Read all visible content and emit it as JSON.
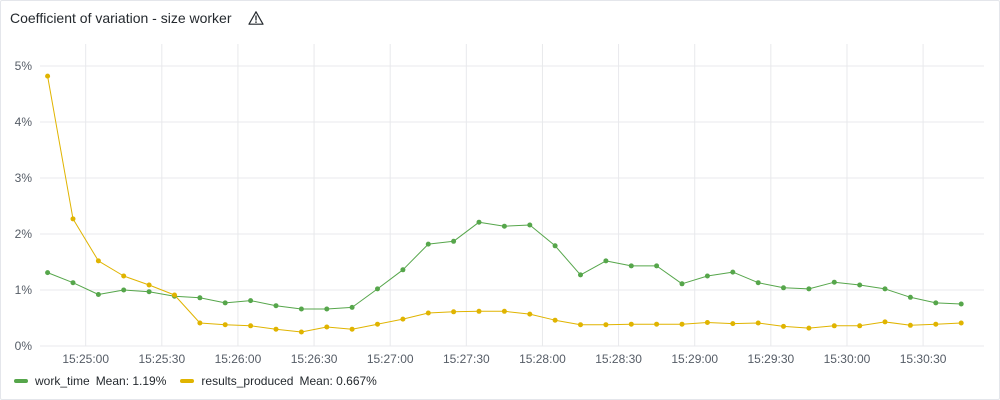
{
  "panel": {
    "title": "Coefficient of variation - size worker",
    "warning_icon": "warning-triangle-icon"
  },
  "colors": {
    "work_time": "#56a64b",
    "results_produced": "#e0b400",
    "grid": "#e8e9ec"
  },
  "legend": [
    {
      "name": "work_time",
      "mean_label": "Mean: 1.19%"
    },
    {
      "name": "results_produced",
      "mean_label": "Mean: 0.667%"
    }
  ],
  "chart_data": {
    "type": "line",
    "title": "Coefficient of variation - size worker",
    "xlabel": "",
    "ylabel": "",
    "x_unit": "time",
    "x_start": "15:24:45",
    "x_step_seconds": 10,
    "xlim": [
      "15:24:42",
      "15:30:54"
    ],
    "ylim": [
      0,
      5
    ],
    "yticks": [
      "0%",
      "1%",
      "2%",
      "3%",
      "4%",
      "5%"
    ],
    "xticks": [
      "15:25:00",
      "15:25:30",
      "15:26:00",
      "15:26:30",
      "15:27:00",
      "15:27:30",
      "15:28:00",
      "15:28:30",
      "15:29:00",
      "15:29:30",
      "15:30:00",
      "15:30:30"
    ],
    "grid": true,
    "legend_position": "bottom-left",
    "series": [
      {
        "name": "work_time",
        "values": [
          1.31,
          1.13,
          0.92,
          1.0,
          0.97,
          0.89,
          0.86,
          0.77,
          0.81,
          0.72,
          0.66,
          0.66,
          0.69,
          1.02,
          1.36,
          1.82,
          1.87,
          2.21,
          2.14,
          2.16,
          1.79,
          1.27,
          1.52,
          1.43,
          1.43,
          1.11,
          1.25,
          1.32,
          1.13,
          1.04,
          1.02,
          1.14,
          1.09,
          1.02,
          0.87,
          0.77,
          0.75
        ]
      },
      {
        "name": "results_produced",
        "values": [
          4.82,
          2.27,
          1.52,
          1.25,
          1.09,
          0.91,
          0.41,
          0.38,
          0.36,
          0.3,
          0.25,
          0.34,
          0.3,
          0.39,
          0.48,
          0.59,
          0.61,
          0.62,
          0.62,
          0.57,
          0.46,
          0.38,
          0.38,
          0.39,
          0.39,
          0.39,
          0.42,
          0.4,
          0.41,
          0.35,
          0.32,
          0.36,
          0.36,
          0.43,
          0.37,
          0.39,
          0.41
        ]
      }
    ]
  }
}
